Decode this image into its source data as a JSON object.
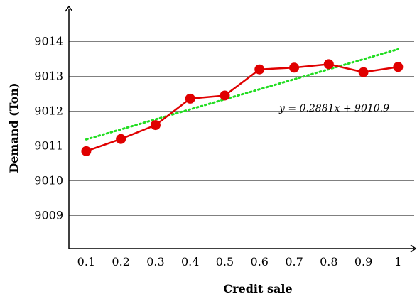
{
  "chart_data": {
    "type": "line",
    "xlabel": "Credit sale",
    "ylabel": "Demand (Ton)",
    "x": [
      0.1,
      0.2,
      0.3,
      0.4,
      0.5,
      0.6,
      0.7,
      0.8,
      0.9,
      1.0
    ],
    "x_tick_labels": [
      "0.1",
      "0.2",
      "0.3",
      "0.4",
      "0.5",
      "0.6",
      "0.7",
      "0.8",
      "0.9",
      "1"
    ],
    "y_ticks": [
      9009,
      9010,
      9011,
      9012,
      9013,
      9014
    ],
    "y_tick_labels": [
      "9009",
      "9010",
      "9011",
      "9012",
      "9013",
      "9014"
    ],
    "xlim": [
      0.05,
      1.03
    ],
    "ylim": [
      9008.05,
      9014.95
    ],
    "grid": "horizontal",
    "series": [
      {
        "values": [
          9010.85,
          9011.2,
          9011.6,
          9012.36,
          9012.45,
          9013.2,
          9013.25,
          9013.35,
          9013.12,
          9013.27
        ],
        "color": "#e00000",
        "marker": "circle"
      }
    ],
    "trendline": {
      "slope": 0.2881,
      "intercept": 9010.9,
      "color": "#22dd22",
      "style": "dotted",
      "label": "y = 0.2881x + 9010.9"
    }
  }
}
